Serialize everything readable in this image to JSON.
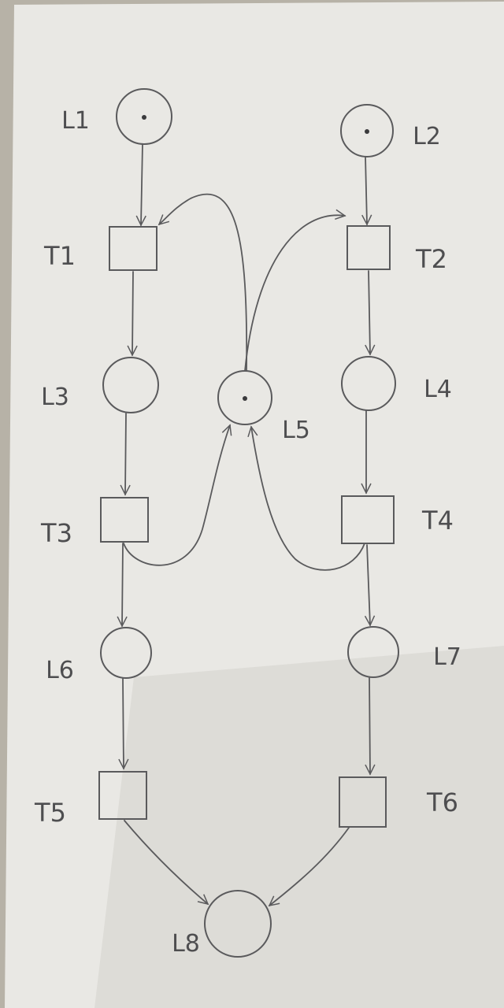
{
  "colors": {
    "paper": "#e9e8e4",
    "paper_shadow": "#c9c7c1",
    "ink": "#5a5a5c",
    "token": "#3a3a3c"
  },
  "places": [
    {
      "id": "L1",
      "label": "L1",
      "tokens": 1
    },
    {
      "id": "L2",
      "label": "L2",
      "tokens": 1
    },
    {
      "id": "L3",
      "label": "L3",
      "tokens": 0
    },
    {
      "id": "L4",
      "label": "L4",
      "tokens": 0
    },
    {
      "id": "L5",
      "label": "L5",
      "tokens": 1
    },
    {
      "id": "L6",
      "label": "L6",
      "tokens": 0
    },
    {
      "id": "L7",
      "label": "L7",
      "tokens": 0
    },
    {
      "id": "L8",
      "label": "L8",
      "tokens": 0
    }
  ],
  "transitions": [
    {
      "id": "T1",
      "label": "T1"
    },
    {
      "id": "T2",
      "label": "T2"
    },
    {
      "id": "T3",
      "label": "T3"
    },
    {
      "id": "T4",
      "label": "T4"
    },
    {
      "id": "T5",
      "label": "T5"
    },
    {
      "id": "T6",
      "label": "T6"
    }
  ],
  "arcs": [
    {
      "from": "L1",
      "to": "T1"
    },
    {
      "from": "L2",
      "to": "T2"
    },
    {
      "from": "L5",
      "to": "T1"
    },
    {
      "from": "L5",
      "to": "T2"
    },
    {
      "from": "T1",
      "to": "L3"
    },
    {
      "from": "T2",
      "to": "L4"
    },
    {
      "from": "L3",
      "to": "T3"
    },
    {
      "from": "L4",
      "to": "T4"
    },
    {
      "from": "T3",
      "to": "L5"
    },
    {
      "from": "T4",
      "to": "L5"
    },
    {
      "from": "T3",
      "to": "L6"
    },
    {
      "from": "T4",
      "to": "L7"
    },
    {
      "from": "L6",
      "to": "T5"
    },
    {
      "from": "L7",
      "to": "T6"
    },
    {
      "from": "T5",
      "to": "L8"
    },
    {
      "from": "T6",
      "to": "L8"
    }
  ]
}
